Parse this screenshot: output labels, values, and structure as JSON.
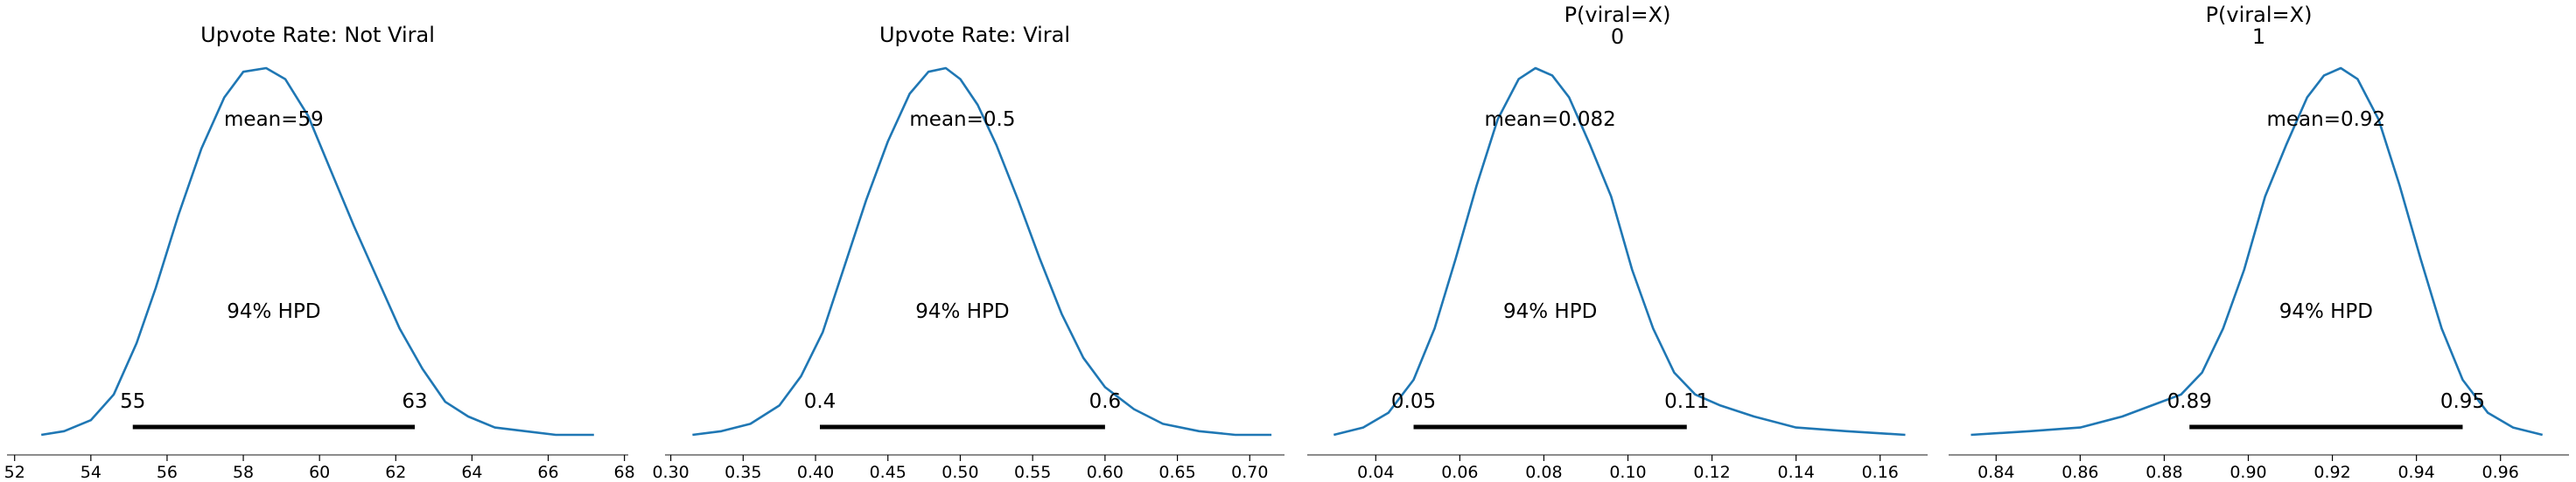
{
  "chart_data": [
    {
      "type": "area",
      "title": "Upvote Rate: Not Viral",
      "title_line2": "",
      "mean_text": "mean=59",
      "hpd_text": "94% HPD",
      "hpd_low_text": "55",
      "hpd_high_text": "63",
      "hpd": [
        55.1,
        62.5
      ],
      "xlim": [
        51.8,
        68.1
      ],
      "xticks": [
        52,
        54,
        56,
        58,
        60,
        62,
        64,
        66,
        68
      ],
      "xtick_labels": [
        "52",
        "54",
        "56",
        "58",
        "60",
        "62",
        "64",
        "66",
        "68"
      ],
      "curve": {
        "x": [
          52.7,
          53.3,
          54.0,
          54.6,
          55.2,
          55.7,
          56.3,
          56.9,
          57.5,
          58.0,
          58.6,
          59.1,
          59.7,
          60.3,
          60.9,
          61.5,
          62.1,
          62.7,
          63.3,
          63.9,
          64.6,
          65.4,
          66.2,
          67.2
        ],
        "y": [
          0.0,
          0.01,
          0.04,
          0.11,
          0.25,
          0.4,
          0.6,
          0.78,
          0.92,
          0.99,
          1.0,
          0.97,
          0.87,
          0.72,
          0.57,
          0.43,
          0.29,
          0.18,
          0.09,
          0.05,
          0.02,
          0.01,
          0.0,
          0.0
        ]
      }
    },
    {
      "type": "area",
      "title": "Upvote Rate: Viral",
      "title_line2": "",
      "mean_text": "mean=0.5",
      "hpd_text": "94% HPD",
      "hpd_low_text": "0.4",
      "hpd_high_text": "0.6",
      "hpd": [
        0.403,
        0.6
      ],
      "xlim": [
        0.296,
        0.724
      ],
      "xticks": [
        0.3,
        0.35,
        0.4,
        0.45,
        0.5,
        0.55,
        0.6,
        0.65,
        0.7
      ],
      "xtick_labels": [
        "0.30",
        "0.35",
        "0.40",
        "0.45",
        "0.50",
        "0.55",
        "0.60",
        "0.65",
        "0.70"
      ],
      "curve": {
        "x": [
          0.315,
          0.335,
          0.355,
          0.375,
          0.39,
          0.405,
          0.42,
          0.435,
          0.45,
          0.465,
          0.478,
          0.49,
          0.5,
          0.512,
          0.525,
          0.54,
          0.555,
          0.57,
          0.585,
          0.6,
          0.62,
          0.64,
          0.665,
          0.69,
          0.715
        ],
        "y": [
          0.0,
          0.01,
          0.03,
          0.08,
          0.16,
          0.28,
          0.46,
          0.64,
          0.8,
          0.93,
          0.99,
          1.0,
          0.97,
          0.9,
          0.79,
          0.64,
          0.48,
          0.33,
          0.21,
          0.13,
          0.07,
          0.03,
          0.01,
          0.0,
          0.0
        ]
      }
    },
    {
      "type": "area",
      "title": "P(viral=X)",
      "title_line2": "0",
      "mean_text": "mean=0.082",
      "hpd_text": "94% HPD",
      "hpd_low_text": "0.05",
      "hpd_high_text": "0.11",
      "hpd": [
        0.049,
        0.114
      ],
      "xlim": [
        0.0237,
        0.1713
      ],
      "xticks": [
        0.04,
        0.06,
        0.08,
        0.1,
        0.12,
        0.14,
        0.16
      ],
      "xtick_labels": [
        "0.04",
        "0.06",
        "0.08",
        "0.10",
        "0.12",
        "0.14",
        "0.16"
      ],
      "curve": {
        "x": [
          0.03,
          0.037,
          0.043,
          0.049,
          0.054,
          0.059,
          0.064,
          0.069,
          0.074,
          0.078,
          0.082,
          0.086,
          0.091,
          0.096,
          0.101,
          0.106,
          0.111,
          0.116,
          0.122,
          0.13,
          0.14,
          0.152,
          0.166
        ],
        "y": [
          0.0,
          0.02,
          0.06,
          0.15,
          0.29,
          0.48,
          0.68,
          0.86,
          0.97,
          1.0,
          0.98,
          0.92,
          0.79,
          0.65,
          0.45,
          0.29,
          0.17,
          0.11,
          0.08,
          0.05,
          0.02,
          0.01,
          0.0
        ]
      }
    },
    {
      "type": "area",
      "title": "P(viral=X)",
      "title_line2": "1",
      "mean_text": "mean=0.92",
      "hpd_text": "94% HPD",
      "hpd_low_text": "0.89",
      "hpd_high_text": "0.95",
      "hpd": [
        0.886,
        0.951
      ],
      "xlim": [
        0.8287,
        0.9763
      ],
      "xticks": [
        0.84,
        0.86,
        0.88,
        0.9,
        0.92,
        0.94,
        0.96
      ],
      "xtick_labels": [
        "0.84",
        "0.86",
        "0.88",
        "0.90",
        "0.92",
        "0.94",
        "0.96"
      ],
      "curve": {
        "x": [
          0.834,
          0.848,
          0.86,
          0.87,
          0.877,
          0.884,
          0.889,
          0.894,
          0.899,
          0.904,
          0.909,
          0.914,
          0.918,
          0.922,
          0.926,
          0.931,
          0.936,
          0.941,
          0.946,
          0.951,
          0.957,
          0.963,
          0.97
        ],
        "y": [
          0.0,
          0.01,
          0.02,
          0.05,
          0.08,
          0.11,
          0.17,
          0.29,
          0.45,
          0.65,
          0.79,
          0.92,
          0.98,
          1.0,
          0.97,
          0.86,
          0.68,
          0.48,
          0.29,
          0.15,
          0.06,
          0.02,
          0.0
        ]
      }
    }
  ]
}
